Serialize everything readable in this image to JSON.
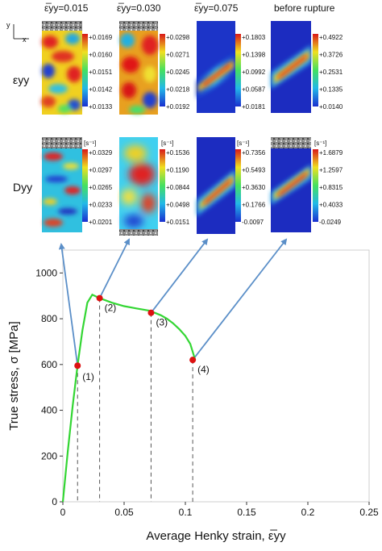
{
  "headers": [
    "ε̅yy=0.015",
    "ε̅yy=0.030",
    "ε̅yy=0.075",
    "before rupture"
  ],
  "row_labels": [
    "εyy",
    "Dyy"
  ],
  "axis_indicator": {
    "y": "y",
    "x": "x"
  },
  "unit_label": "[s⁻¹]",
  "colorbars": {
    "eps": [
      [
        "+0.0169",
        "+0.0160",
        "+0.0151",
        "+0.0142",
        "+0.0133"
      ],
      [
        "+0.0298",
        "+0.0271",
        "+0.0245",
        "+0.0218",
        "+0.0192"
      ],
      [
        "+0.1803",
        "+0.1398",
        "+0.0992",
        "+0.0587",
        "+0.0181"
      ],
      [
        "+0.4922",
        "+0.3726",
        "+0.2531",
        "+0.1335",
        "+0.0140"
      ]
    ],
    "d": [
      [
        "+0.0329",
        "+0.0297",
        "+0.0265",
        "+0.0233",
        "+0.0201"
      ],
      [
        "+0.1536",
        "+0.1190",
        "+0.0844",
        "+0.0498",
        "+0.0151"
      ],
      [
        "+0.7356",
        "+0.5493",
        "+0.3630",
        "+0.1766",
        "-0.0097"
      ],
      [
        "+1.6879",
        "+1.2597",
        "+0.8315",
        "+0.4033",
        "-0.0249"
      ]
    ]
  },
  "colors": {
    "curve": "#33d633",
    "point": "#dd1111",
    "arrow": "#5b8fc8",
    "dash": "#555555"
  },
  "chart_data": {
    "type": "line",
    "xlabel": "Average Henky strain, ε̅yy",
    "ylabel": "True stress, σ [MPa]",
    "xlim": [
      0,
      0.25
    ],
    "ylim": [
      0,
      1100
    ],
    "x_ticks": [
      "0",
      "0.05",
      "0.1",
      "0.15",
      "0.2",
      "0.25"
    ],
    "y_ticks": [
      "0",
      "200",
      "400",
      "600",
      "800",
      "1000"
    ],
    "curve": {
      "x": [
        0,
        0.004,
        0.008,
        0.012,
        0.016,
        0.02,
        0.024,
        0.03,
        0.04,
        0.05,
        0.06,
        0.07,
        0.075,
        0.08,
        0.085,
        0.09,
        0.095,
        0.1,
        0.104,
        0.108
      ],
      "y": [
        0,
        220,
        420,
        595,
        750,
        870,
        905,
        890,
        870,
        855,
        845,
        836,
        826,
        815,
        800,
        780,
        755,
        725,
        690,
        620
      ]
    },
    "points": [
      {
        "label": "(1)",
        "x": 0.012,
        "y": 595
      },
      {
        "label": "(2)",
        "x": 0.03,
        "y": 890
      },
      {
        "label": "(3)",
        "x": 0.072,
        "y": 826
      },
      {
        "label": "(4)",
        "x": 0.106,
        "y": 620
      }
    ]
  }
}
